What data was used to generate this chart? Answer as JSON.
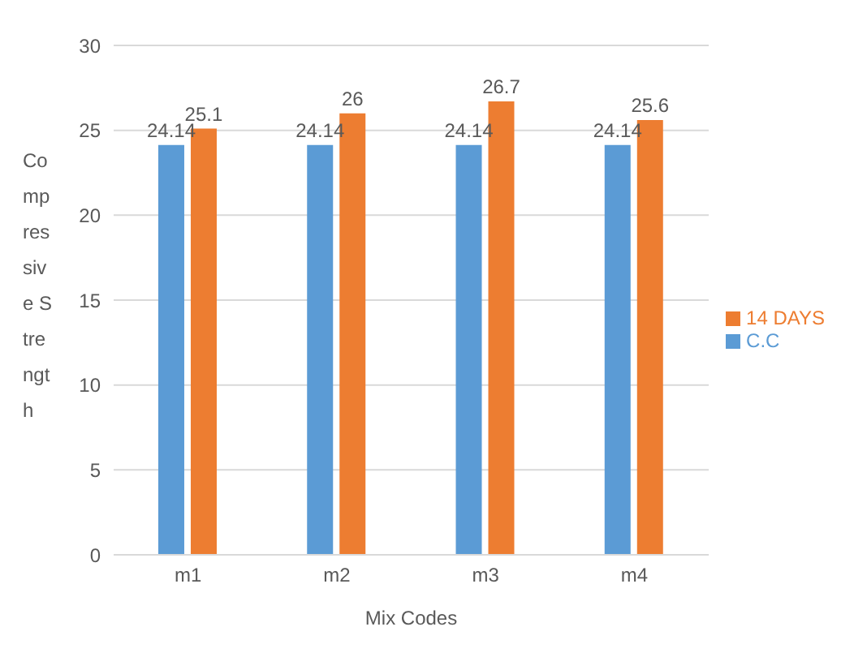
{
  "chart_data": {
    "type": "bar",
    "xlabel": "Mix Codes",
    "ylabel": "Compressive Strength",
    "categories": [
      "m1",
      "m2",
      "m3",
      "m4"
    ],
    "series": [
      {
        "name": "C.C",
        "color": "#5b9bd5",
        "values": [
          24.14,
          24.14,
          24.14,
          24.14
        ]
      },
      {
        "name": "14 DAYS",
        "color": "#ed7d31",
        "values": [
          25.1,
          26,
          26.7,
          25.6
        ]
      }
    ],
    "ylim": [
      0,
      30
    ],
    "yticks": [
      0,
      5,
      10,
      15,
      20,
      25,
      30
    ],
    "grid": "y",
    "legend": "right",
    "data_labels": true
  }
}
